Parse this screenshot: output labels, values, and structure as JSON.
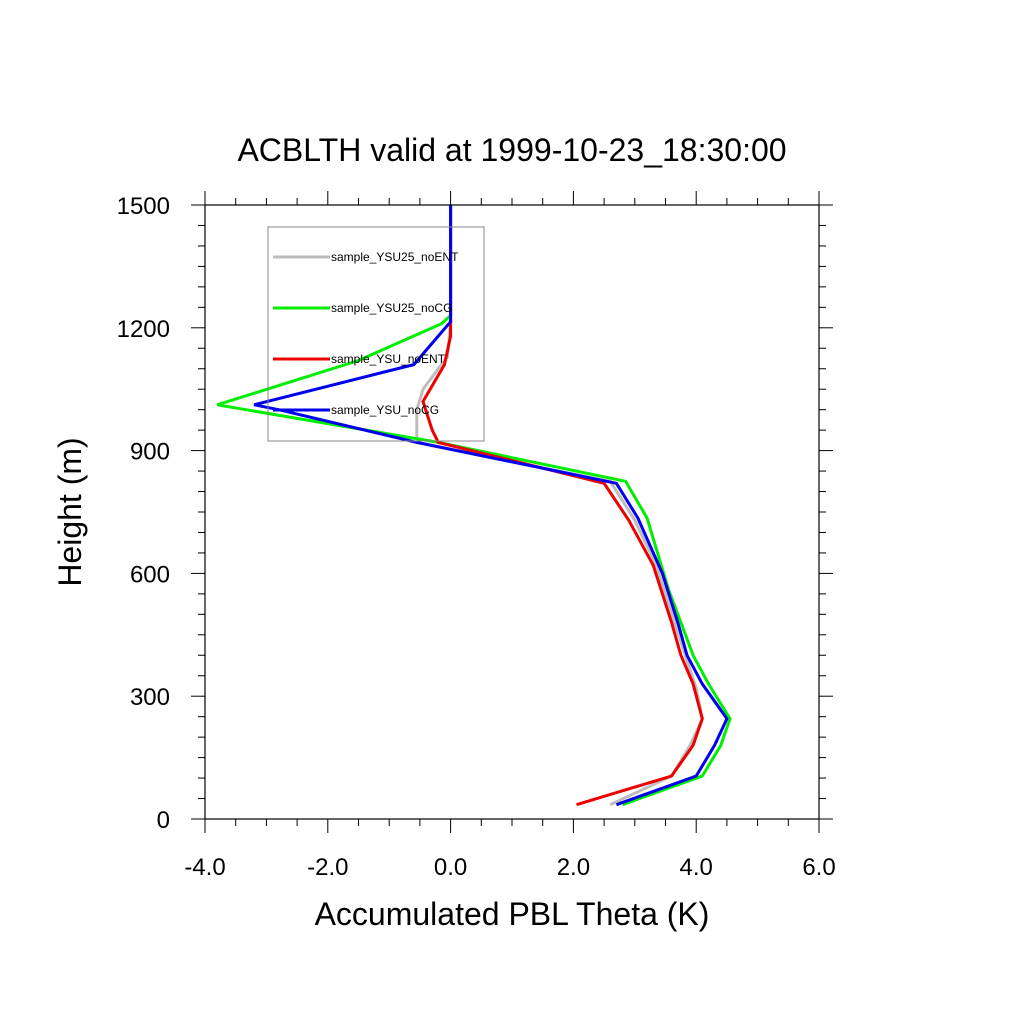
{
  "chart_data": {
    "type": "line",
    "title": "ACBLTH valid at 1999-10-23_18:30:00",
    "xlabel": "Accumulated PBL Theta (K)",
    "ylabel": "Height (m)",
    "xlim": [
      -4.0,
      6.0
    ],
    "ylim": [
      0,
      1500
    ],
    "x_ticks": [
      -4.0,
      -2.0,
      0.0,
      2.0,
      4.0,
      6.0
    ],
    "x_tick_labels": [
      "-4.0",
      "-2.0",
      "0.0",
      "2.0",
      "4.0",
      "6.0"
    ],
    "y_ticks": [
      0,
      300,
      600,
      900,
      1200,
      1500
    ],
    "y_tick_labels": [
      "0",
      "300",
      "600",
      "900",
      "1200",
      "1500"
    ],
    "grid": false,
    "legend_position": "top-left",
    "series": [
      {
        "name": "sample_YSU25_noENT",
        "color": "#bdbdbd",
        "points": [
          [
            2.6,
            35
          ],
          [
            3.6,
            105
          ],
          [
            3.9,
            180
          ],
          [
            4.1,
            245
          ],
          [
            4.0,
            320
          ],
          [
            3.8,
            410
          ],
          [
            3.65,
            480
          ],
          [
            3.35,
            620
          ],
          [
            3.0,
            730
          ],
          [
            2.6,
            825
          ],
          [
            -0.55,
            920
          ],
          [
            -0.55,
            1000
          ],
          [
            -0.45,
            1050
          ],
          [
            -0.05,
            1130
          ],
          [
            0,
            1215
          ],
          [
            0,
            1300
          ],
          [
            0,
            1500
          ]
        ]
      },
      {
        "name": "sample_YSU25_noCG",
        "color": "#00ee00",
        "points": [
          [
            2.8,
            35
          ],
          [
            4.1,
            105
          ],
          [
            4.4,
            180
          ],
          [
            4.55,
            245
          ],
          [
            4.2,
            330
          ],
          [
            3.95,
            400
          ],
          [
            3.75,
            480
          ],
          [
            3.55,
            560
          ],
          [
            3.2,
            735
          ],
          [
            2.85,
            825
          ],
          [
            -0.2,
            920
          ],
          [
            -3.8,
            1012
          ],
          [
            -1.5,
            1120
          ],
          [
            -0.15,
            1210
          ],
          [
            0,
            1230
          ],
          [
            0,
            1300
          ],
          [
            0,
            1500
          ]
        ]
      },
      {
        "name": "sample_YSU_noENT",
        "color": "#ee0000",
        "points": [
          [
            2.05,
            35
          ],
          [
            3.6,
            105
          ],
          [
            3.95,
            180
          ],
          [
            4.1,
            245
          ],
          [
            3.95,
            330
          ],
          [
            3.75,
            400
          ],
          [
            3.6,
            480
          ],
          [
            3.3,
            620
          ],
          [
            2.9,
            730
          ],
          [
            2.5,
            820
          ],
          [
            -0.2,
            920
          ],
          [
            -0.3,
            950
          ],
          [
            -0.45,
            1020
          ],
          [
            -0.1,
            1110
          ],
          [
            0,
            1180
          ],
          [
            0,
            1300
          ],
          [
            0,
            1500
          ]
        ]
      },
      {
        "name": "sample_YSU_noCG",
        "color": "#0000ee",
        "points": [
          [
            2.7,
            35
          ],
          [
            4.0,
            105
          ],
          [
            4.3,
            180
          ],
          [
            4.5,
            245
          ],
          [
            4.1,
            330
          ],
          [
            3.85,
            400
          ],
          [
            3.7,
            480
          ],
          [
            3.45,
            600
          ],
          [
            3.05,
            735
          ],
          [
            2.7,
            820
          ],
          [
            -0.55,
            920
          ],
          [
            -2.8,
            1000
          ],
          [
            -3.2,
            1012
          ],
          [
            -0.6,
            1110
          ],
          [
            0,
            1215
          ],
          [
            0,
            1300
          ],
          [
            0,
            1500
          ]
        ]
      }
    ]
  }
}
